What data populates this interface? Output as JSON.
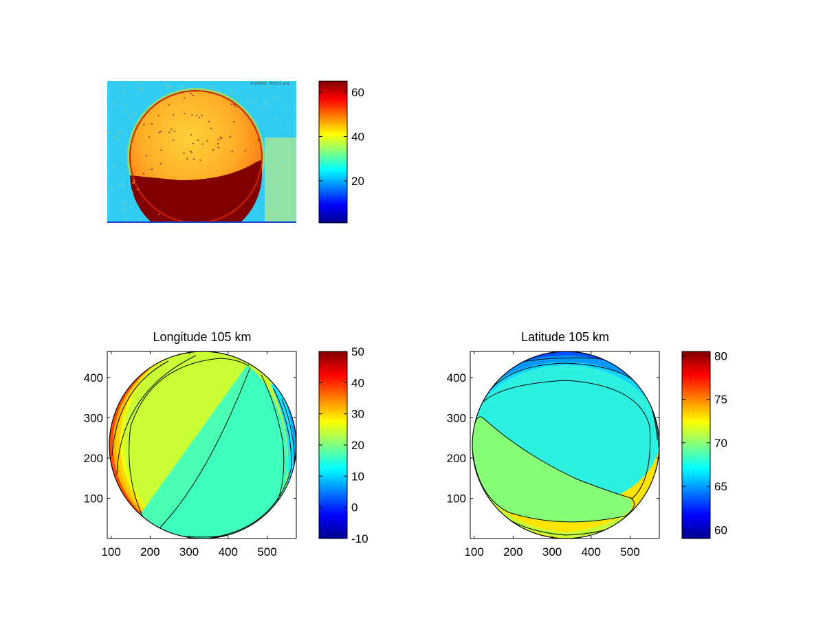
{
  "figure": {
    "background": "#ffffff"
  },
  "chart_data": [
    {
      "type": "heatmap",
      "title": "",
      "image_stamp": "20100601.014523.png",
      "colorbar": {
        "ticks": [
          20,
          40,
          60
        ],
        "clim": [
          1,
          65
        ],
        "colormap": "jet"
      },
      "scene": {
        "disk": "bright orange-yellow disk, dark red lower third",
        "background": "cyan noisy field"
      }
    },
    {
      "type": "heatmap",
      "title": "Longitude 105 km",
      "xlim": [
        90,
        575
      ],
      "ylim": [
        0,
        465
      ],
      "xticks": [
        100,
        200,
        300,
        400,
        500
      ],
      "yticks": [
        100,
        200,
        300,
        400
      ],
      "colorbar": {
        "ticks": [
          -10,
          0,
          10,
          20,
          30,
          40,
          50
        ],
        "clim": [
          -10,
          50
        ],
        "colormap": "jet"
      },
      "circle": {
        "center": [
          335,
          232
        ],
        "radius": 233
      },
      "contour_values": [
        45,
        35,
        30,
        25,
        20,
        15,
        10,
        5,
        0
      ]
    },
    {
      "type": "heatmap",
      "title": "Latitude 105 km",
      "xlim": [
        90,
        575
      ],
      "ylim": [
        0,
        465
      ],
      "xticks": [
        100,
        200,
        300,
        400,
        500
      ],
      "yticks": [
        100,
        200,
        300,
        400
      ],
      "colorbar": {
        "ticks": [
          60,
          65,
          70,
          75,
          80
        ],
        "clim": [
          59,
          80.5
        ],
        "colormap": "jet"
      },
      "circle": {
        "center": [
          335,
          232
        ],
        "radius": 233
      },
      "contour_values": [
        64,
        65,
        66,
        67,
        68,
        69,
        70,
        71,
        72,
        73,
        74
      ]
    }
  ]
}
